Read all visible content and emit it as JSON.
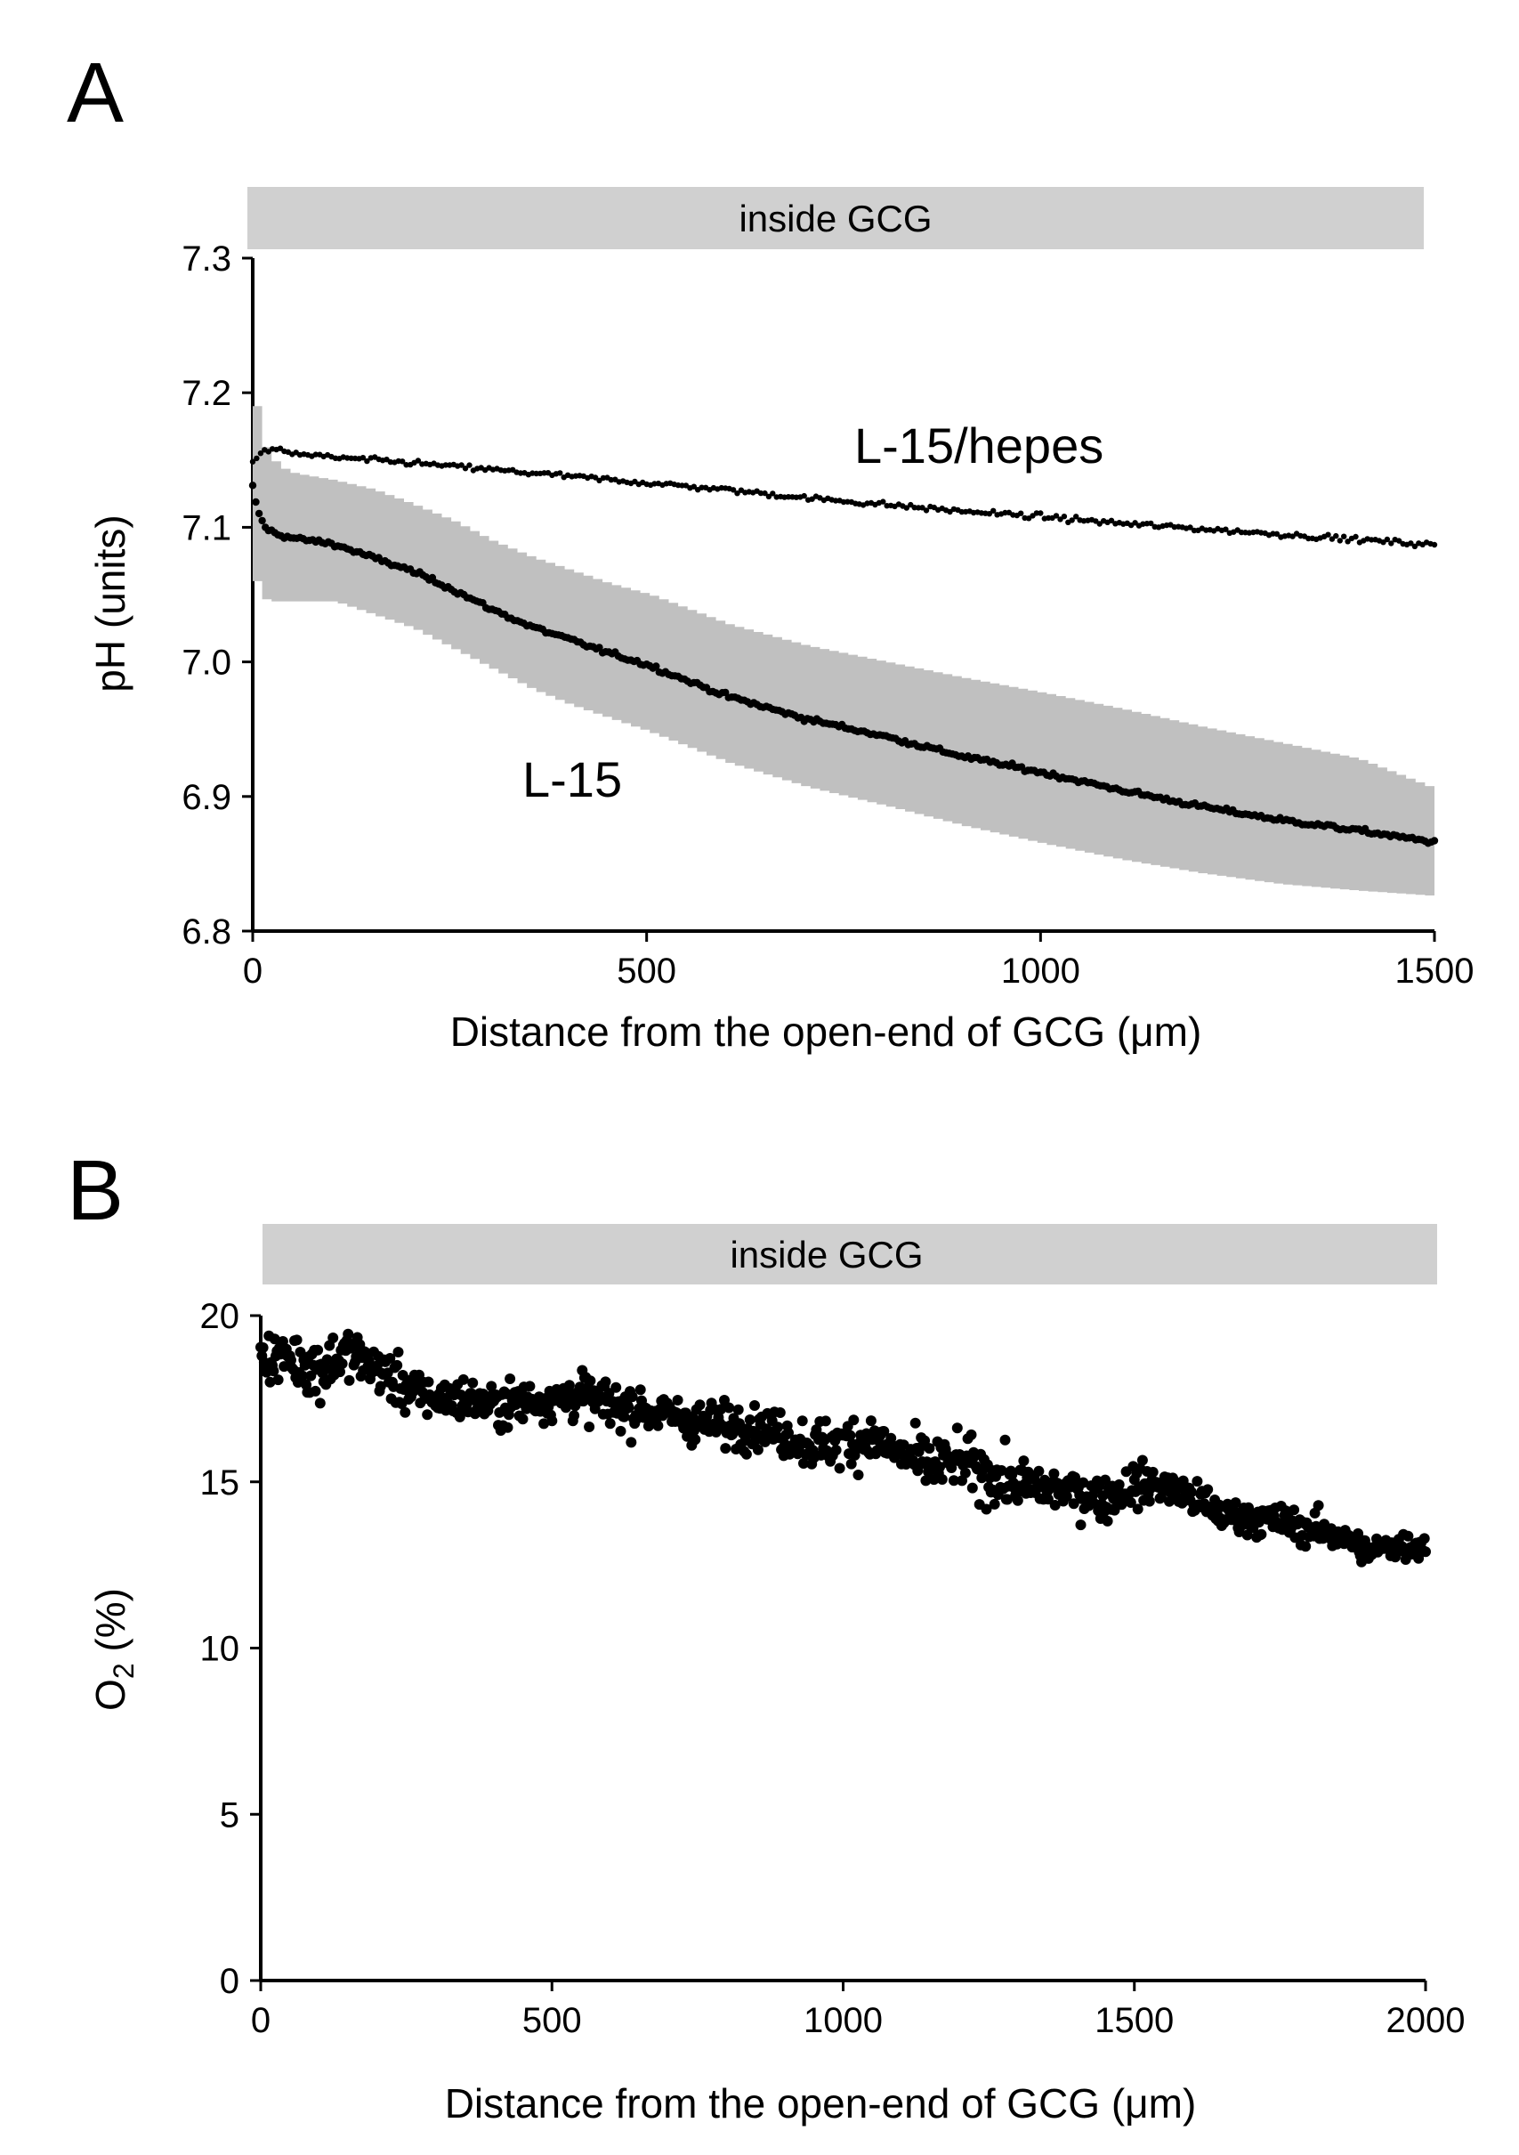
{
  "chart_data": [
    {
      "panel": "A",
      "type": "scatter",
      "band_label": "inside GCG",
      "xlabel": "Distance from the open-end of GCG (μm)",
      "ylabel": "pH (units)",
      "xlim": [
        0,
        1500
      ],
      "ylim": [
        6.8,
        7.3
      ],
      "x_ticks": [
        "0",
        "500",
        "1000",
        "1500"
      ],
      "x_tick_values": [
        0,
        500,
        1000,
        1500
      ],
      "y_ticks": [
        "6.8",
        "6.9",
        "7.0",
        "7.1",
        "7.2",
        "7.3"
      ],
      "y_tick_values": [
        6.8,
        6.9,
        7.0,
        7.1,
        7.2,
        7.3
      ],
      "series": [
        {
          "name": "L-15/hepes",
          "label": "L-15/hepes",
          "x": [
            0,
            10,
            25,
            50,
            100,
            200,
            300,
            400,
            500,
            600,
            700,
            800,
            900,
            1000,
            1100,
            1200,
            1300,
            1400,
            1500
          ],
          "y": [
            7.15,
            7.155,
            7.158,
            7.155,
            7.152,
            7.148,
            7.143,
            7.138,
            7.133,
            7.128,
            7.122,
            7.117,
            7.112,
            7.108,
            7.103,
            7.099,
            7.095,
            7.091,
            7.087
          ]
        },
        {
          "name": "L-15",
          "label": "L-15",
          "x": [
            0,
            5,
            15,
            30,
            50,
            100,
            150,
            200,
            250,
            300,
            350,
            400,
            450,
            500,
            600,
            700,
            800,
            900,
            1000,
            1100,
            1200,
            1300,
            1400,
            1500
          ],
          "y": [
            7.13,
            7.115,
            7.1,
            7.095,
            7.092,
            7.088,
            7.078,
            7.068,
            7.055,
            7.04,
            7.027,
            7.017,
            7.007,
            6.998,
            6.975,
            6.958,
            6.945,
            6.93,
            6.918,
            6.905,
            6.893,
            6.883,
            6.875,
            6.866
          ],
          "error_upper": [
            7.19,
            7.17,
            7.155,
            7.145,
            7.14,
            7.135,
            7.128,
            7.117,
            7.105,
            7.09,
            7.078,
            7.068,
            7.058,
            7.05,
            7.028,
            7.012,
            7.0,
            6.988,
            6.977,
            6.965,
            6.952,
            6.94,
            6.928,
            6.905
          ],
          "error_lower": [
            7.06,
            7.05,
            7.045,
            7.045,
            7.045,
            7.045,
            7.035,
            7.025,
            7.01,
            6.995,
            6.98,
            6.968,
            6.958,
            6.948,
            6.925,
            6.907,
            6.893,
            6.878,
            6.865,
            6.853,
            6.843,
            6.835,
            6.83,
            6.826
          ]
        }
      ]
    },
    {
      "panel": "B",
      "type": "scatter",
      "band_label": "inside GCG",
      "xlabel": "Distance from the open-end of GCG (μm)",
      "ylabel": "O",
      "ylabel_sub": "2",
      "ylabel_unit": " (%)",
      "xlim": [
        0,
        2000
      ],
      "ylim": [
        0,
        20
      ],
      "x_ticks": [
        "0",
        "500",
        "1000",
        "1500",
        "2000"
      ],
      "x_tick_values": [
        0,
        500,
        1000,
        1500,
        2000
      ],
      "y_ticks": [
        "0",
        "5",
        "10",
        "15",
        "20"
      ],
      "y_tick_values": [
        0,
        5,
        10,
        15,
        20
      ],
      "series": [
        {
          "name": "O2",
          "x": [
            0,
            50,
            100,
            150,
            200,
            250,
            300,
            350,
            400,
            450,
            500,
            550,
            600,
            650,
            700,
            750,
            800,
            850,
            900,
            950,
            1000,
            1050,
            1100,
            1150,
            1200,
            1250,
            1300,
            1350,
            1400,
            1450,
            1500,
            1550,
            1600,
            1650,
            1700,
            1750,
            1800,
            1850,
            1900,
            1950,
            2000
          ],
          "y": [
            18.8,
            18.7,
            18.4,
            18.9,
            18.4,
            17.8,
            17.5,
            17.5,
            17.3,
            17.4,
            17.5,
            17.6,
            17.3,
            17.2,
            17.0,
            16.8,
            16.7,
            16.7,
            16.4,
            16.1,
            16.2,
            16.3,
            15.8,
            15.5,
            15.6,
            15.2,
            14.9,
            14.8,
            14.7,
            14.5,
            14.9,
            14.9,
            14.5,
            14.0,
            13.9,
            13.8,
            13.6,
            13.4,
            12.9,
            13.1,
            13.1
          ],
          "scatter": [
            0.45,
            0.55,
            0.7,
            0.5,
            0.55,
            0.5,
            0.45,
            0.45,
            0.45,
            0.45,
            0.45,
            0.5,
            0.5,
            0.45,
            0.45,
            0.45,
            0.45,
            0.45,
            0.45,
            0.5,
            0.55,
            0.55,
            0.55,
            0.55,
            0.55,
            0.55,
            0.55,
            0.45,
            0.45,
            0.45,
            0.45,
            0.45,
            0.4,
            0.4,
            0.35,
            0.35,
            0.35,
            0.35,
            0.3,
            0.3,
            0.3
          ]
        }
      ]
    }
  ],
  "panels": {
    "a_letter": "A",
    "b_letter": "B"
  }
}
